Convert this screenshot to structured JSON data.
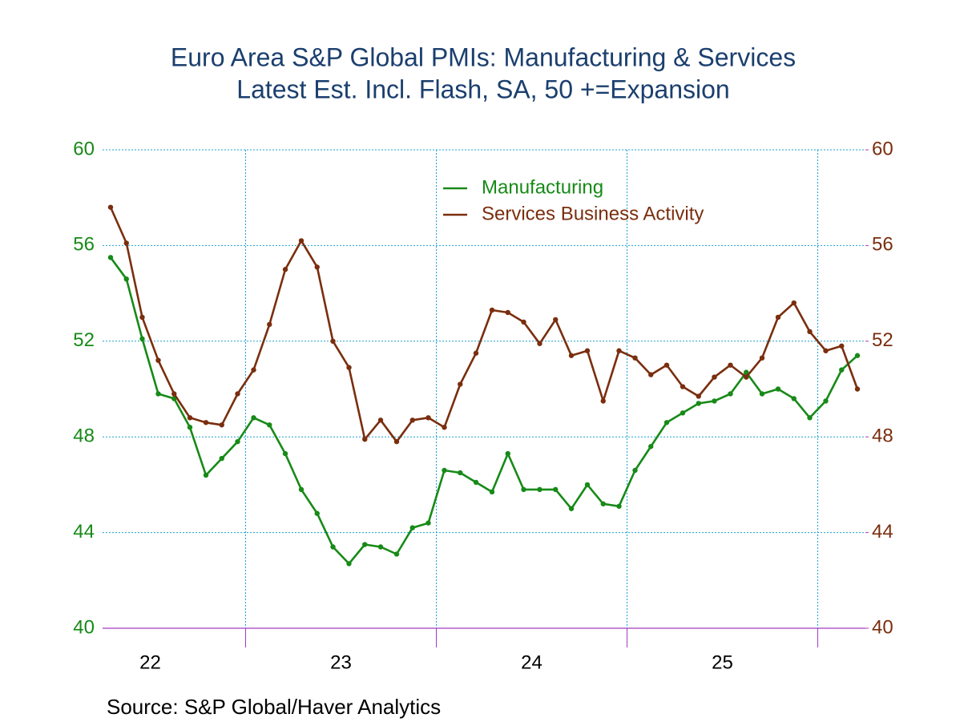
{
  "chart_data": {
    "type": "line",
    "title": "Euro Area S&P Global PMIs: Manufacturing & Services",
    "subtitle": "Latest Est. Incl. Flash, SA, 50 +=Expansion",
    "source": "Source:  S&P Global/Haver Analytics",
    "x": [
      22.292,
      22.375,
      22.458,
      22.542,
      22.625,
      22.708,
      22.792,
      22.875,
      22.958,
      23.042,
      23.125,
      23.208,
      23.292,
      23.375,
      23.458,
      23.542,
      23.625,
      23.708,
      23.792,
      23.875,
      23.958,
      24.042,
      24.125,
      24.208,
      24.292,
      24.375,
      24.458,
      24.542,
      24.625,
      24.708,
      24.792,
      24.875,
      24.958,
      25.042,
      25.125,
      25.208,
      25.292,
      25.375,
      25.458,
      25.542,
      25.625,
      25.708,
      25.792,
      25.875,
      25.958,
      26.042,
      26.125,
      26.208
    ],
    "series": [
      {
        "name": "Manufacturing",
        "color": "#178a17",
        "values": [
          55.5,
          54.6,
          52.1,
          49.8,
          49.6,
          48.4,
          46.4,
          47.1,
          47.8,
          48.8,
          48.5,
          47.3,
          45.8,
          44.8,
          43.4,
          42.7,
          43.5,
          43.4,
          43.1,
          44.2,
          44.4,
          46.6,
          46.5,
          46.1,
          45.7,
          47.3,
          45.8,
          45.8,
          45.8,
          45.0,
          46.0,
          45.2,
          45.1,
          46.6,
          47.6,
          48.6,
          49.0,
          49.4,
          49.5,
          49.8,
          50.7,
          49.8,
          50.0,
          49.6,
          48.8,
          49.5,
          50.8,
          51.4
        ]
      },
      {
        "name": "Services Business Activity",
        "color": "#7a2e0e",
        "axis": "y2",
        "values": [
          57.6,
          56.1,
          53.0,
          51.2,
          49.8,
          48.8,
          48.6,
          48.5,
          49.8,
          50.8,
          52.7,
          55.0,
          56.2,
          55.1,
          52.0,
          50.9,
          47.9,
          48.7,
          47.8,
          48.7,
          48.8,
          48.4,
          50.2,
          51.5,
          53.3,
          53.2,
          52.8,
          51.9,
          52.9,
          51.4,
          51.6,
          49.5,
          51.6,
          51.3,
          50.6,
          51.0,
          50.1,
          49.7,
          50.5,
          51.0,
          50.5,
          51.3,
          53.0,
          53.6,
          52.4,
          51.6,
          51.8,
          50.0
        ]
      }
    ],
    "xlim": [
      22.25,
      26.25
    ],
    "xticks": [
      {
        "value": 22.5,
        "label": "22"
      },
      {
        "value": 23.5,
        "label": "23"
      },
      {
        "value": 24.5,
        "label": "24"
      },
      {
        "value": 25.5,
        "label": "25"
      }
    ],
    "xgrid": [
      23,
      24,
      25,
      26
    ],
    "ylim": [
      40,
      60
    ],
    "yticks": [
      40,
      44,
      48,
      52,
      56,
      60
    ],
    "y2lim": [
      40,
      60
    ],
    "y2ticks": [
      40,
      44,
      48,
      52,
      56,
      60
    ],
    "grid": true
  }
}
